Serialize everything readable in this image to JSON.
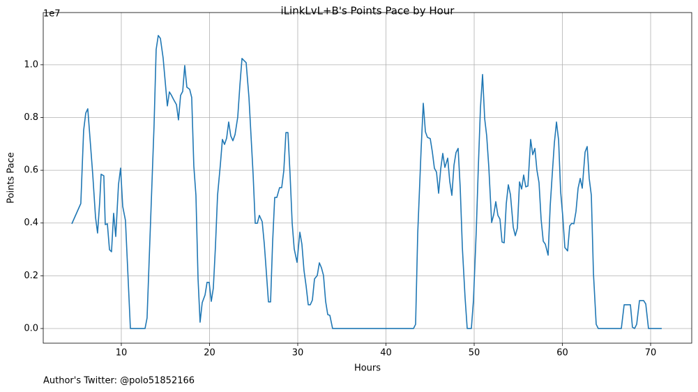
{
  "chart_data": {
    "type": "line",
    "title": "iLinkLvL+B's Points Pace by Hour",
    "xlabel": "Hours",
    "ylabel": "Points Pace",
    "offset_text": "1e7",
    "annotation": "Author's Twitter: @polo51852166",
    "color": "#1f77b4",
    "grid": true,
    "xlim": [
      1.15,
      74.66
    ],
    "ylim": [
      -556000,
      11980000
    ],
    "xticks": [
      10,
      20,
      30,
      40,
      50,
      60,
      70
    ],
    "yticks": [
      {
        "value": 0,
        "label": "0.0"
      },
      {
        "value": 2000000,
        "label": "0.2"
      },
      {
        "value": 4000000,
        "label": "0.4"
      },
      {
        "value": 6000000,
        "label": "0.6"
      },
      {
        "value": 8000000,
        "label": "0.8"
      },
      {
        "value": 10000000,
        "label": "1.0"
      }
    ],
    "x": [
      4.39,
      5.41,
      5.73,
      5.97,
      6.2,
      6.76,
      7.08,
      7.31,
      7.55,
      7.71,
      8.02,
      8.18,
      8.42,
      8.66,
      8.89,
      9.13,
      9.37,
      9.68,
      9.92,
      10.16,
      10.47,
      11.03,
      12.69,
      12.92,
      13.71,
      13.95,
      14.19,
      14.43,
      14.74,
      15.22,
      15.45,
      15.69,
      15.93,
      16.25,
      16.48,
      16.72,
      16.96,
      17.19,
      17.43,
      17.75,
      17.98,
      18.22,
      18.46,
      18.7,
      18.93,
      19.17,
      19.49,
      19.72,
      19.96,
      20.2,
      20.43,
      20.67,
      20.91,
      21.23,
      21.46,
      21.7,
      21.94,
      22.17,
      22.41,
      22.65,
      22.89,
      23.2,
      23.44,
      23.68,
      23.91,
      24.15,
      24.47,
      24.94,
      25.18,
      25.42,
      25.65,
      25.97,
      26.21,
      26.44,
      26.68,
      26.92,
      27.15,
      27.39,
      27.63,
      27.94,
      28.18,
      28.42,
      28.66,
      28.89,
      29.13,
      29.37,
      29.6,
      29.92,
      30.24,
      30.47,
      30.71,
      30.95,
      31.19,
      31.42,
      31.66,
      31.9,
      32.21,
      32.45,
      32.69,
      32.92,
      33.16,
      33.4,
      33.64,
      33.95,
      43.12,
      43.36,
      43.6,
      43.99,
      44.23,
      44.47,
      44.7,
      45.02,
      45.26,
      45.49,
      45.73,
      45.97,
      46.21,
      46.44,
      46.68,
      47.0,
      47.23,
      47.47,
      47.71,
      47.94,
      48.18,
      48.42,
      48.66,
      48.97,
      49.21,
      49.68,
      49.92,
      50.24,
      50.47,
      50.71,
      50.95,
      51.19,
      51.42,
      51.66,
      51.98,
      52.21,
      52.45,
      52.69,
      52.92,
      53.16,
      53.4,
      53.64,
      53.87,
      54.11,
      54.43,
      54.66,
      54.9,
      55.14,
      55.38,
      55.61,
      55.85,
      56.09,
      56.4,
      56.64,
      56.88,
      57.11,
      57.35,
      57.59,
      57.83,
      58.06,
      58.38,
      58.62,
      58.85,
      59.09,
      59.33,
      59.57,
      59.8,
      60.04,
      60.28,
      60.59,
      60.83,
      61.07,
      61.3,
      61.54,
      61.78,
      62.02,
      62.25,
      62.57,
      62.81,
      63.04,
      63.28,
      63.52,
      63.83,
      64.07,
      66.68,
      67.0,
      67.23,
      67.71,
      67.94,
      68.18,
      68.42,
      68.74,
      68.97,
      69.21,
      69.45,
      69.76,
      71.26
    ],
    "values": [
      3970000,
      4740000,
      7510000,
      8170000,
      8330000,
      5850000,
      4210000,
      3620000,
      4790000,
      5850000,
      5790000,
      3940000,
      3970000,
      2990000,
      2910000,
      4370000,
      3490000,
      5450000,
      6080000,
      4630000,
      4100000,
      0,
      0,
      400000,
      7670000,
      10580000,
      11110000,
      11000000,
      10260000,
      8440000,
      8970000,
      8840000,
      8680000,
      8490000,
      7910000,
      8840000,
      8990000,
      9970000,
      9150000,
      9070000,
      8760000,
      6160000,
      5050000,
      1880000,
      240000,
      980000,
      1270000,
      1750000,
      1750000,
      1030000,
      1530000,
      3100000,
      5050000,
      6220000,
      7170000,
      6980000,
      7220000,
      7830000,
      7300000,
      7120000,
      7350000,
      8020000,
      9210000,
      10240000,
      10160000,
      10080000,
      8760000,
      5850000,
      3990000,
      3990000,
      4290000,
      4050000,
      3200000,
      2140000,
      1010000,
      1010000,
      3250000,
      4970000,
      4970000,
      5340000,
      5340000,
      5980000,
      7430000,
      7430000,
      5850000,
      3990000,
      3020000,
      2510000,
      3650000,
      3200000,
      2200000,
      1610000,
      900000,
      900000,
      1080000,
      1880000,
      2010000,
      2490000,
      2300000,
      2010000,
      1030000,
      530000,
      500000,
      0,
      0,
      160000,
      3600000,
      6830000,
      8540000,
      7460000,
      7250000,
      7200000,
      6690000,
      6080000,
      5930000,
      5130000,
      6060000,
      6640000,
      6110000,
      6460000,
      5580000,
      5050000,
      6190000,
      6670000,
      6830000,
      5320000,
      3070000,
      1160000,
      0,
      0,
      1080000,
      3730000,
      6110000,
      8360000,
      9630000,
      7960000,
      7300000,
      6110000,
      4020000,
      4310000,
      4810000,
      4290000,
      4150000,
      3280000,
      3250000,
      4740000,
      5450000,
      5080000,
      3840000,
      3520000,
      3810000,
      5560000,
      5290000,
      5820000,
      5370000,
      5400000,
      7170000,
      6590000,
      6830000,
      6010000,
      5530000,
      4130000,
      3310000,
      3200000,
      2780000,
      4660000,
      5850000,
      7040000,
      7830000,
      7140000,
      5190000,
      4260000,
      3070000,
      2940000,
      3890000,
      3990000,
      3970000,
      4440000,
      5320000,
      5690000,
      5320000,
      6690000,
      6900000,
      5690000,
      5050000,
      2090000,
      160000,
      0,
      0,
      900000,
      900000,
      900000,
      50000,
      0,
      160000,
      1060000,
      1060000,
      1060000,
      930000,
      0,
      0
    ]
  }
}
